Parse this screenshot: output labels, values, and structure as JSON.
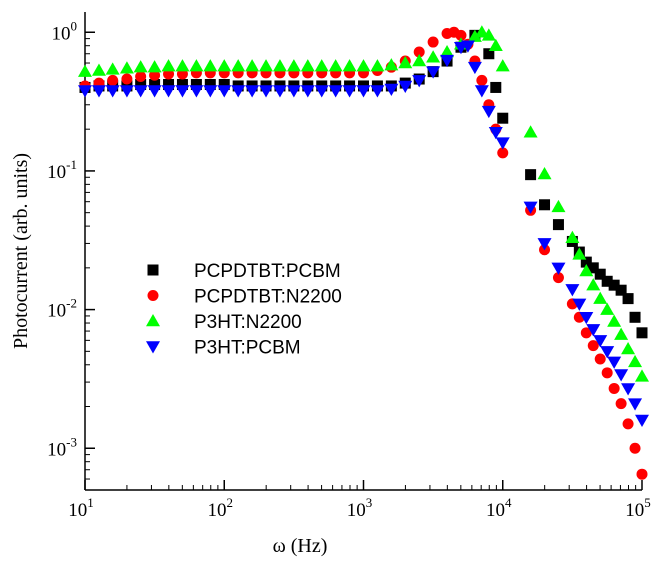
{
  "chart_data": {
    "type": "scatter",
    "title": "",
    "xlabel": "ω (Hz)",
    "ylabel": "Photocurrent (arb. units)",
    "xscale": "log",
    "yscale": "log",
    "xlim": [
      10,
      100000
    ],
    "ylim": [
      0.0005,
      1.4
    ],
    "grid": false,
    "legend_position": "lower-left",
    "x_ticks": [
      {
        "base": "10",
        "exp": "1",
        "value": 10
      },
      {
        "base": "10",
        "exp": "2",
        "value": 100
      },
      {
        "base": "10",
        "exp": "3",
        "value": 1000
      },
      {
        "base": "10",
        "exp": "4",
        "value": 10000
      },
      {
        "base": "10",
        "exp": "5",
        "value": 100000
      }
    ],
    "y_ticks": [
      {
        "base": "10",
        "exp": "0",
        "value": 1
      },
      {
        "base": "10",
        "exp": "-1",
        "value": 0.1
      },
      {
        "base": "10",
        "exp": "-2",
        "value": 0.01
      },
      {
        "base": "10",
        "exp": "-3",
        "value": 0.001
      }
    ],
    "series": [
      {
        "name": "PCPDTBT:PCBM",
        "color": "#000000",
        "marker": "square",
        "points": [
          [
            10,
            0.4
          ],
          [
            12.6,
            0.41
          ],
          [
            15.8,
            0.41
          ],
          [
            20,
            0.41
          ],
          [
            25.1,
            0.42
          ],
          [
            31.6,
            0.42
          ],
          [
            39.8,
            0.42
          ],
          [
            50.1,
            0.42
          ],
          [
            63.1,
            0.42
          ],
          [
            79.4,
            0.42
          ],
          [
            100,
            0.42
          ],
          [
            125.9,
            0.41
          ],
          [
            158.5,
            0.41
          ],
          [
            199.5,
            0.41
          ],
          [
            251.2,
            0.41
          ],
          [
            316.2,
            0.41
          ],
          [
            398.1,
            0.41
          ],
          [
            501.2,
            0.41
          ],
          [
            631,
            0.41
          ],
          [
            794.3,
            0.41
          ],
          [
            1000,
            0.41
          ],
          [
            1259,
            0.41
          ],
          [
            1585,
            0.41
          ],
          [
            1995,
            0.43
          ],
          [
            2512,
            0.46
          ],
          [
            3162,
            0.52
          ],
          [
            3981,
            0.62
          ],
          [
            5012,
            0.78
          ],
          [
            6310,
            0.95
          ],
          [
            7943,
            0.7
          ],
          [
            8913,
            0.4
          ],
          [
            10000,
            0.24
          ],
          [
            15849,
            0.094
          ],
          [
            19953,
            0.057
          ],
          [
            25119,
            0.041
          ],
          [
            31623,
            0.031
          ],
          [
            35481,
            0.026
          ],
          [
            39811,
            0.022
          ],
          [
            44668,
            0.02
          ],
          [
            50119,
            0.018
          ],
          [
            56234,
            0.016
          ],
          [
            63096,
            0.015
          ],
          [
            70795,
            0.0138
          ],
          [
            79433,
            0.012
          ],
          [
            89125,
            0.0088
          ],
          [
            100000,
            0.0068
          ]
        ]
      },
      {
        "name": "PCPDTBT:N2200",
        "color": "#ff0000",
        "marker": "circle",
        "points": [
          [
            10,
            0.41
          ],
          [
            12.6,
            0.43
          ],
          [
            15.8,
            0.45
          ],
          [
            20,
            0.46
          ],
          [
            25.1,
            0.48
          ],
          [
            31.6,
            0.49
          ],
          [
            39.8,
            0.5
          ],
          [
            50.1,
            0.5
          ],
          [
            63.1,
            0.51
          ],
          [
            79.4,
            0.51
          ],
          [
            100,
            0.51
          ],
          [
            125.9,
            0.51
          ],
          [
            158.5,
            0.51
          ],
          [
            199.5,
            0.51
          ],
          [
            251.2,
            0.51
          ],
          [
            316.2,
            0.51
          ],
          [
            398.1,
            0.51
          ],
          [
            501.2,
            0.51
          ],
          [
            631,
            0.51
          ],
          [
            794.3,
            0.51
          ],
          [
            1000,
            0.51
          ],
          [
            1259,
            0.53
          ],
          [
            1585,
            0.56
          ],
          [
            1995,
            0.62
          ],
          [
            2512,
            0.72
          ],
          [
            3162,
            0.85
          ],
          [
            3981,
            0.98
          ],
          [
            4467,
            1.0
          ],
          [
            5012,
            0.95
          ],
          [
            5623,
            0.82
          ],
          [
            6310,
            0.62
          ],
          [
            7079,
            0.45
          ],
          [
            7943,
            0.3
          ],
          [
            8913,
            0.2
          ],
          [
            10000,
            0.135
          ],
          [
            15849,
            0.052
          ],
          [
            19953,
            0.027
          ],
          [
            25119,
            0.017
          ],
          [
            31623,
            0.011
          ],
          [
            35481,
            0.0088
          ],
          [
            39811,
            0.0068
          ],
          [
            44668,
            0.0055
          ],
          [
            50119,
            0.0044
          ],
          [
            56234,
            0.0035
          ],
          [
            63096,
            0.0027
          ],
          [
            70795,
            0.0021
          ],
          [
            79433,
            0.0015
          ],
          [
            89125,
            0.001
          ],
          [
            100000,
            0.00065
          ]
        ]
      },
      {
        "name": "P3HT:N2200",
        "color": "#00ff00",
        "marker": "triangle-up",
        "points": [
          [
            10,
            0.52
          ],
          [
            12.6,
            0.53
          ],
          [
            15.8,
            0.54
          ],
          [
            20,
            0.55
          ],
          [
            25.1,
            0.56
          ],
          [
            31.6,
            0.56
          ],
          [
            39.8,
            0.57
          ],
          [
            50.1,
            0.57
          ],
          [
            63.1,
            0.57
          ],
          [
            79.4,
            0.57
          ],
          [
            100,
            0.57
          ],
          [
            125.9,
            0.57
          ],
          [
            158.5,
            0.57
          ],
          [
            199.5,
            0.57
          ],
          [
            251.2,
            0.57
          ],
          [
            316.2,
            0.57
          ],
          [
            398.1,
            0.57
          ],
          [
            501.2,
            0.57
          ],
          [
            631,
            0.57
          ],
          [
            794.3,
            0.57
          ],
          [
            1000,
            0.57
          ],
          [
            1259,
            0.57
          ],
          [
            1585,
            0.58
          ],
          [
            1995,
            0.6
          ],
          [
            2512,
            0.62
          ],
          [
            3162,
            0.66
          ],
          [
            3981,
            0.72
          ],
          [
            5012,
            0.82
          ],
          [
            6310,
            0.93
          ],
          [
            7079,
            1.0
          ],
          [
            7943,
            0.95
          ],
          [
            8913,
            0.8
          ],
          [
            10000,
            0.57
          ],
          [
            15849,
            0.19
          ],
          [
            19953,
            0.095
          ],
          [
            25119,
            0.055
          ],
          [
            31623,
            0.033
          ],
          [
            35481,
            0.025
          ],
          [
            39811,
            0.019
          ],
          [
            44668,
            0.015
          ],
          [
            50119,
            0.012
          ],
          [
            56234,
            0.01
          ],
          [
            63096,
            0.0082
          ],
          [
            70795,
            0.0066
          ],
          [
            79433,
            0.0052
          ],
          [
            89125,
            0.0042
          ],
          [
            100000,
            0.0033
          ]
        ]
      },
      {
        "name": "P3HT:PCBM",
        "color": "#0000ff",
        "marker": "triangle-down",
        "points": [
          [
            10,
            0.38
          ],
          [
            12.6,
            0.38
          ],
          [
            15.8,
            0.38
          ],
          [
            20,
            0.38
          ],
          [
            25.1,
            0.38
          ],
          [
            31.6,
            0.38
          ],
          [
            39.8,
            0.38
          ],
          [
            50.1,
            0.38
          ],
          [
            63.1,
            0.38
          ],
          [
            79.4,
            0.38
          ],
          [
            100,
            0.38
          ],
          [
            125.9,
            0.38
          ],
          [
            158.5,
            0.38
          ],
          [
            199.5,
            0.38
          ],
          [
            251.2,
            0.38
          ],
          [
            316.2,
            0.38
          ],
          [
            398.1,
            0.38
          ],
          [
            501.2,
            0.38
          ],
          [
            631,
            0.38
          ],
          [
            794.3,
            0.38
          ],
          [
            1000,
            0.38
          ],
          [
            1259,
            0.38
          ],
          [
            1585,
            0.39
          ],
          [
            1995,
            0.41
          ],
          [
            2512,
            0.45
          ],
          [
            3162,
            0.52
          ],
          [
            3981,
            0.63
          ],
          [
            5012,
            0.78
          ],
          [
            5623,
            0.8
          ],
          [
            6310,
            0.56
          ],
          [
            7079,
            0.38
          ],
          [
            7943,
            0.27
          ],
          [
            8913,
            0.19
          ],
          [
            10000,
            0.16
          ],
          [
            15849,
            0.055
          ],
          [
            19953,
            0.03
          ],
          [
            25119,
            0.02
          ],
          [
            31623,
            0.014
          ],
          [
            35481,
            0.011
          ],
          [
            39811,
            0.0088
          ],
          [
            44668,
            0.0072
          ],
          [
            50119,
            0.006
          ],
          [
            56234,
            0.005
          ],
          [
            63096,
            0.0042
          ],
          [
            70795,
            0.0034
          ],
          [
            79433,
            0.0027
          ],
          [
            89125,
            0.0021
          ],
          [
            100000,
            0.0016
          ]
        ]
      }
    ]
  }
}
